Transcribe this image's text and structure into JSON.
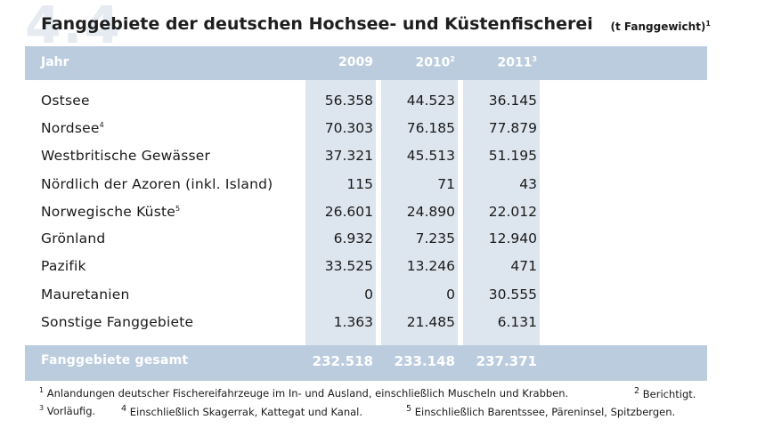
{
  "bg_number": "4.4",
  "title": "Fanggebiete der deutschen Hochsee- und Küstenfischerei",
  "unit": "(t Fanggewicht)",
  "unit_sup": "1",
  "header": {
    "label": "Jahr",
    "y2009": "2009",
    "y2010": "2010",
    "y2010_sup": "2",
    "y2011": "2011",
    "y2011_sup": "3"
  },
  "rows": [
    {
      "label": "Ostsee",
      "sup": "",
      "v2009": "56.358",
      "v2010": "44.523",
      "v2011": "36.145"
    },
    {
      "label": "Nordsee",
      "sup": "4",
      "v2009": "70.303",
      "v2010": "76.185",
      "v2011": "77.879"
    },
    {
      "label": "Westbritische Gewässer",
      "sup": "",
      "v2009": "37.321",
      "v2010": "45.513",
      "v2011": "51.195"
    },
    {
      "label": "Nördlich der Azoren (inkl. Island)",
      "sup": "",
      "v2009": "115",
      "v2010": "71",
      "v2011": "43"
    },
    {
      "label": "Norwegische Küste",
      "sup": "5",
      "v2009": "26.601",
      "v2010": "24.890",
      "v2011": "22.012"
    },
    {
      "label": "Grönland",
      "sup": "",
      "v2009": "6.932",
      "v2010": "7.235",
      "v2011": "12.940"
    },
    {
      "label": "Pazifik",
      "sup": "",
      "v2009": "33.525",
      "v2010": "13.246",
      "v2011": "471"
    },
    {
      "label": "Mauretanien",
      "sup": "",
      "v2009": "0",
      "v2010": "0",
      "v2011": "30.555"
    },
    {
      "label": "Sonstige Fanggebiete",
      "sup": "",
      "v2009": "1.363",
      "v2010": "21.485",
      "v2011": "6.131"
    }
  ],
  "total": {
    "label": "Fanggebiete gesamt",
    "v2009": "232.518",
    "v2010": "233.148",
    "v2011": "237.371"
  },
  "footnotes": {
    "n1_mark": "1",
    "n1": "Anlandungen deutscher Fischereifahrzeuge im In- und Ausland, einschließlich Muscheln und Krabben.",
    "n2_mark": "2",
    "n2": "Berichtigt.",
    "n3_mark": "3",
    "n3": "Vorläufig.",
    "n4_mark": "4",
    "n4": "Einschließlich Skagerrak, Kattegat und Kanal.",
    "n5_mark": "5",
    "n5": "Einschließlich Barentssee, Päreninsel, Spitzbergen."
  }
}
